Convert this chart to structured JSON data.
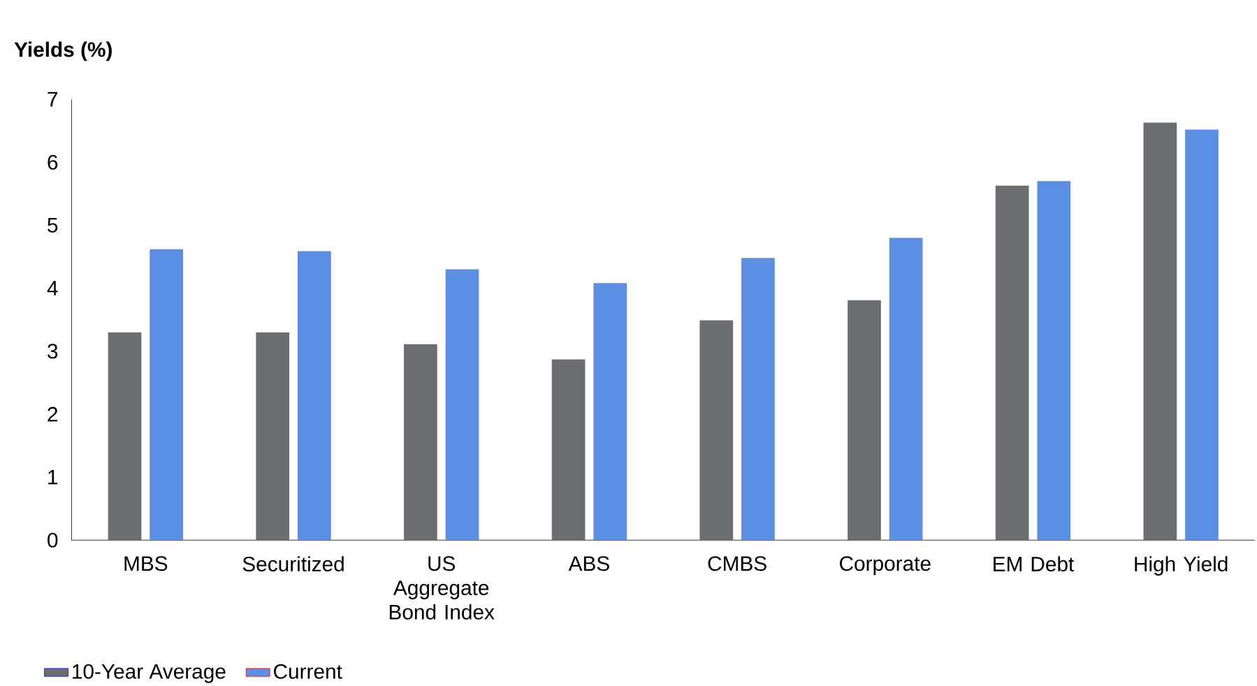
{
  "chart_data": {
    "type": "bar",
    "ylabel": "Yields (%)",
    "categories": [
      "MBS",
      "Securitized",
      "US Aggregate Bond Index",
      "ABS",
      "CMBS",
      "Corporate",
      "EM Debt",
      "High Yield"
    ],
    "series": [
      {
        "name": "10-Year Average",
        "color": "#6d6e71",
        "values": [
          3.3,
          3.3,
          3.11,
          2.87,
          3.49,
          3.81,
          5.63,
          6.63
        ]
      },
      {
        "name": "Current",
        "color": "#5a8fe3",
        "values": [
          4.62,
          4.59,
          4.3,
          4.08,
          4.48,
          4.8,
          5.7,
          6.52
        ]
      }
    ],
    "ylim": [
      0,
      7
    ],
    "yticks": [
      0,
      1,
      2,
      3,
      4,
      5,
      6,
      7
    ],
    "grid": false,
    "legend": "bottom left"
  }
}
